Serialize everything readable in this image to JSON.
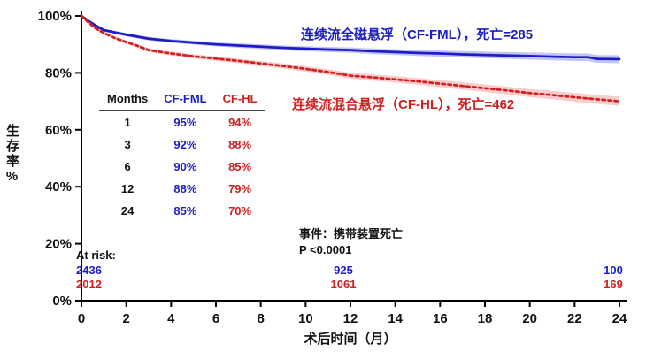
{
  "chart_data": {
    "type": "line",
    "title": "",
    "xlabel": "术后时间（月）",
    "ylabel": "生存率%",
    "xlim": [
      0,
      24
    ],
    "ylim": [
      0,
      100
    ],
    "grid": false,
    "xticks": [
      0,
      2,
      4,
      6,
      8,
      10,
      12,
      14,
      16,
      18,
      20,
      22,
      24
    ],
    "yticks": [
      {
        "v": 0,
        "label": "0%"
      },
      {
        "v": 20,
        "label": "20%"
      },
      {
        "v": 40,
        "label": "40%"
      },
      {
        "v": 60,
        "label": "60%"
      },
      {
        "v": 80,
        "label": "80%"
      },
      {
        "v": 100,
        "label": "100%"
      }
    ],
    "series": [
      {
        "name": "CF-FML",
        "label": "连续流全磁悬浮（CF-FML），死亡=285",
        "color": "#1c1cc8",
        "band_color": "#8a8ae6",
        "style": "solid",
        "x": [
          0,
          0.3,
          0.6,
          1,
          1.5,
          2,
          2.5,
          3,
          4,
          5,
          6,
          7,
          8,
          9,
          10,
          11,
          12,
          13,
          14,
          15,
          16,
          17,
          18,
          19,
          20,
          21,
          22,
          22.6,
          23,
          24
        ],
        "y": [
          100,
          98.3,
          96.8,
          95,
          94.2,
          93.4,
          92.7,
          92,
          91.2,
          90.6,
          90,
          89.6,
          89.2,
          88.8,
          88.5,
          88.2,
          88,
          87.6,
          87.3,
          87,
          86.8,
          86.5,
          86.3,
          86.1,
          85.9,
          85.7,
          85.5,
          85.5,
          84.9,
          84.8
        ],
        "band_halfwidth_start": 0.5,
        "band_halfwidth_end": 1.4
      },
      {
        "name": "CF-HL",
        "label": "连续流混合悬浮（CF-HL），死亡=462",
        "color": "#cf1f1f",
        "band_color": "#f29a9a",
        "style": "dashed",
        "x": [
          0,
          0.3,
          0.6,
          1,
          1.5,
          2,
          2.5,
          3,
          3.5,
          4,
          5,
          6,
          7,
          8,
          9,
          10,
          11,
          12,
          13,
          14,
          15,
          16,
          17,
          18,
          19,
          20,
          21,
          22,
          23,
          24
        ],
        "y": [
          100,
          97.8,
          95.8,
          94,
          92.2,
          90.8,
          89.5,
          88,
          87.4,
          86.8,
          85.8,
          85,
          84.2,
          83.3,
          82.4,
          81.4,
          80.3,
          79,
          78.4,
          77.7,
          77,
          76.2,
          75.4,
          74.6,
          73.8,
          72.9,
          72.2,
          71.4,
          70.7,
          70
        ],
        "band_halfwidth_start": 0.5,
        "band_halfwidth_end": 1.6
      }
    ],
    "table": {
      "headers": [
        "Months",
        "CF-FML",
        "CF-HL"
      ],
      "rows": [
        [
          "1",
          "95%",
          "94%"
        ],
        [
          "3",
          "92%",
          "88%"
        ],
        [
          "6",
          "90%",
          "85%"
        ],
        [
          "12",
          "88%",
          "79%"
        ],
        [
          "24",
          "85%",
          "70%"
        ]
      ]
    },
    "annotations": {
      "event_label": "事件：携带装置死亡",
      "p_value": "P <0.0001"
    },
    "at_risk": {
      "label": "At risk:",
      "positions_months": [
        0,
        12,
        24
      ],
      "rows": [
        {
          "series": "CF-FML",
          "counts": [
            "2436",
            "925",
            "100"
          ]
        },
        {
          "series": "CF-HL",
          "counts": [
            "2012",
            "1061",
            "169"
          ]
        }
      ]
    }
  }
}
